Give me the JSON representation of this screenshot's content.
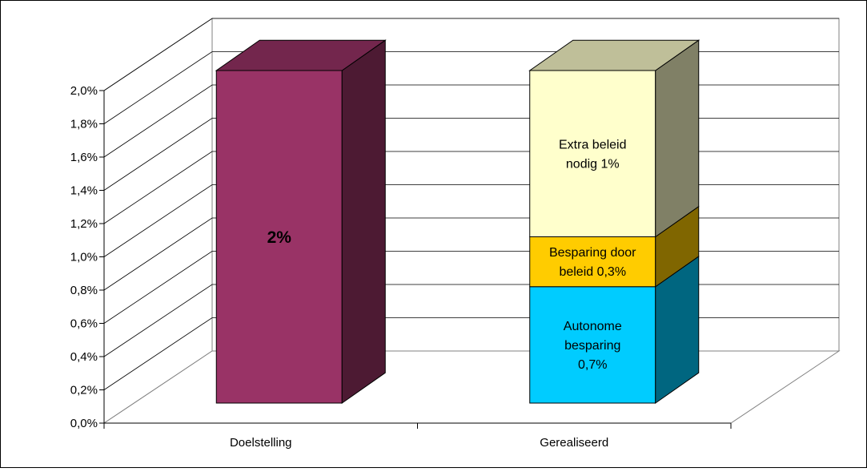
{
  "chart_data": {
    "type": "bar",
    "stacked": true,
    "style": "3d",
    "grid": true,
    "ylim": [
      0,
      0.02
    ],
    "ytick_labels": [
      "0,0%",
      "0,2%",
      "0,4%",
      "0,6%",
      "0,8%",
      "1,0%",
      "1,2%",
      "1,4%",
      "1,6%",
      "1,8%",
      "2,0%"
    ],
    "categories": [
      "Doelstelling",
      "Gerealiseerd"
    ],
    "bars": [
      {
        "category": "Doelstelling",
        "segments": [
          {
            "value": 0.02,
            "label": "2%",
            "bold": true,
            "color": "#993366"
          }
        ]
      },
      {
        "category": "Gerealiseerd",
        "segments": [
          {
            "value": 0.007,
            "label": "Autonome besparing 0,7%",
            "lines": [
              "Autonome",
              "besparing",
              "0,7%"
            ],
            "color": "#00CCFF"
          },
          {
            "value": 0.003,
            "label": "Besparing door beleid 0,3%",
            "lines": [
              "Besparing door",
              "beleid 0,3%"
            ],
            "color": "#FFCC00"
          },
          {
            "value": 0.01,
            "label": "Extra beleid nodig 1%",
            "lines": [
              "Extra beleid",
              "nodig 1%"
            ],
            "color": "#FFFFCC"
          }
        ]
      }
    ]
  }
}
